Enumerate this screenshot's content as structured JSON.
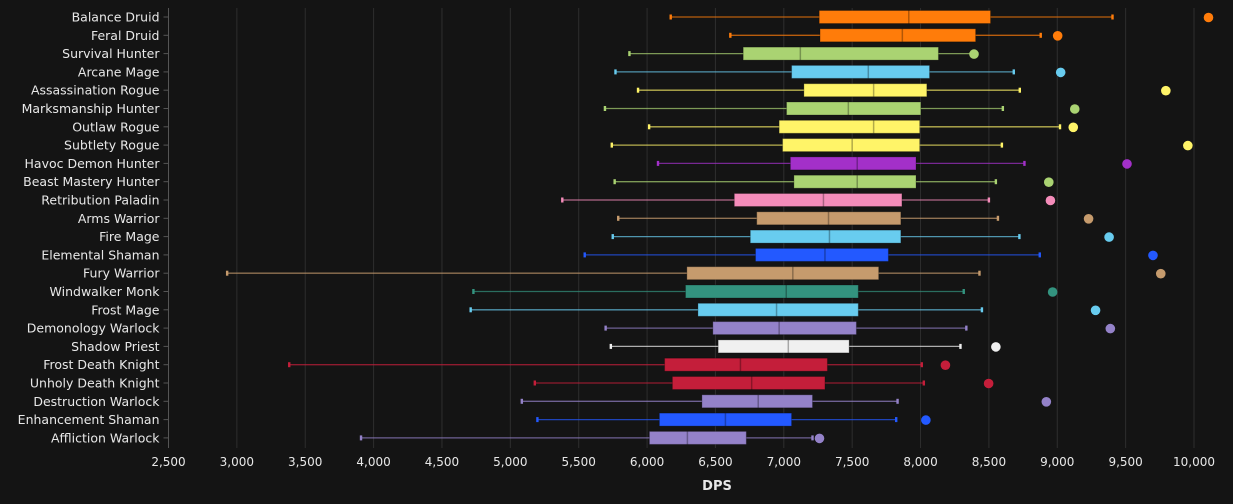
{
  "chart_data": {
    "type": "boxplot",
    "title": "",
    "xlabel": "DPS",
    "ylabel": "",
    "xlim": [
      2500,
      10000
    ],
    "x_ticks": [
      2500,
      3000,
      3500,
      4000,
      4500,
      5000,
      5500,
      6000,
      6500,
      7000,
      7500,
      8000,
      8500,
      9000,
      9500,
      10000
    ],
    "x_tick_labels": [
      "2,500",
      "3,000",
      "3,500",
      "4,000",
      "4,500",
      "5,000",
      "5,500",
      "6,000",
      "6,500",
      "7,000",
      "7,500",
      "8,000",
      "8,500",
      "9,000",
      "9,500",
      "10,000"
    ],
    "grid": true,
    "series": [
      {
        "name": "Balance Druid",
        "color": "#ff7c0a",
        "min": 6173,
        "q1": 7259,
        "median": 7914,
        "q3": 8512,
        "max": 9404,
        "outlier": 10106
      },
      {
        "name": "Feral Druid",
        "color": "#ff7c0a",
        "min": 6609,
        "q1": 7265,
        "median": 7867,
        "q3": 8403,
        "max": 8879,
        "outlier": 9003
      },
      {
        "name": "Survival Hunter",
        "color": "#aad372",
        "min": 5871,
        "q1": 6703,
        "median": 7121,
        "q3": 8131,
        "max": 8380,
        "outlier": 8391
      },
      {
        "name": "Arcane Mage",
        "color": "#68ccef",
        "min": 5769,
        "q1": 7057,
        "median": 7618,
        "q3": 8066,
        "max": 8682,
        "outlier": 9025
      },
      {
        "name": "Assassination Rogue",
        "color": "#fff468",
        "min": 5934,
        "q1": 7147,
        "median": 7657,
        "q3": 8046,
        "max": 8726,
        "outlier": 9794
      },
      {
        "name": "Marksmanship Hunter",
        "color": "#aad372",
        "min": 5692,
        "q1": 7020,
        "median": 7472,
        "q3": 8002,
        "max": 8602,
        "outlier": 9128
      },
      {
        "name": "Outlaw Rogue",
        "color": "#fff468",
        "min": 6015,
        "q1": 6966,
        "median": 7657,
        "q3": 7994,
        "max": 9020,
        "outlier": 9117
      },
      {
        "name": "Subtlety Rogue",
        "color": "#fff468",
        "min": 5742,
        "q1": 6991,
        "median": 7500,
        "q3": 7994,
        "max": 8595,
        "outlier": 9955
      },
      {
        "name": "Havoc Demon Hunter",
        "color": "#a330c9",
        "min": 6080,
        "q1": 7048,
        "median": 7537,
        "q3": 7967,
        "max": 8760,
        "outlier": 9510
      },
      {
        "name": "Beast Mastery Hunter",
        "color": "#aad372",
        "min": 5763,
        "q1": 7074,
        "median": 7537,
        "q3": 7967,
        "max": 8551,
        "outlier": 8938
      },
      {
        "name": "Retribution Paladin",
        "color": "#f48cba",
        "min": 5380,
        "q1": 6638,
        "median": 7290,
        "q3": 7864,
        "max": 8500,
        "outlier": 8950
      },
      {
        "name": "Arms Warrior",
        "color": "#c69b6d",
        "min": 5789,
        "q1": 6802,
        "median": 7327,
        "q3": 7856,
        "max": 8566,
        "outlier": 9229
      },
      {
        "name": "Fire Mage",
        "color": "#68ccef",
        "min": 5749,
        "q1": 6755,
        "median": 7334,
        "q3": 7856,
        "max": 8723,
        "outlier": 9379
      },
      {
        "name": "Elemental Shaman",
        "color": "#2359ff",
        "min": 5544,
        "q1": 6793,
        "median": 7301,
        "q3": 7765,
        "max": 8872,
        "outlier": 9700
      },
      {
        "name": "Fury Warrior",
        "color": "#c69b6d",
        "min": 2929,
        "q1": 6291,
        "median": 7066,
        "q3": 7694,
        "max": 8431,
        "outlier": 9757
      },
      {
        "name": "Windwalker Monk",
        "color": "#33937f",
        "min": 4730,
        "q1": 6281,
        "median": 7018,
        "q3": 7545,
        "max": 8316,
        "outlier": 8966
      },
      {
        "name": "Frost Mage",
        "color": "#68ccef",
        "min": 4710,
        "q1": 6372,
        "median": 6947,
        "q3": 7545,
        "max": 8449,
        "outlier": 9280
      },
      {
        "name": "Demonology Warlock",
        "color": "#9482c9",
        "min": 5697,
        "q1": 6481,
        "median": 6966,
        "q3": 7531,
        "max": 8335,
        "outlier": 9388
      },
      {
        "name": "Shadow Priest",
        "color": "#f0f0f0",
        "min": 5735,
        "q1": 6520,
        "median": 7033,
        "q3": 7478,
        "max": 8292,
        "outlier": 8551
      },
      {
        "name": "Frost Death Knight",
        "color": "#c41e3a",
        "min": 3383,
        "q1": 6128,
        "median": 6683,
        "q3": 7319,
        "max": 8009,
        "outlier": 8182
      },
      {
        "name": "Unholy Death Knight",
        "color": "#c41e3a",
        "min": 5179,
        "q1": 6185,
        "median": 6765,
        "q3": 7301,
        "max": 8024,
        "outlier": 8498
      },
      {
        "name": "Destruction Warlock",
        "color": "#9482c9",
        "min": 5084,
        "q1": 6401,
        "median": 6813,
        "q3": 7210,
        "max": 7832,
        "outlier": 8920
      },
      {
        "name": "Enhancement Shaman",
        "color": "#2359ff",
        "min": 5198,
        "q1": 6090,
        "median": 6573,
        "q3": 7057,
        "max": 7822,
        "outlier": 8039
      },
      {
        "name": "Affliction Warlock",
        "color": "#9482c9",
        "min": 3908,
        "q1": 6017,
        "median": 6295,
        "q3": 6726,
        "max": 7210,
        "outlier": 7261
      }
    ]
  }
}
